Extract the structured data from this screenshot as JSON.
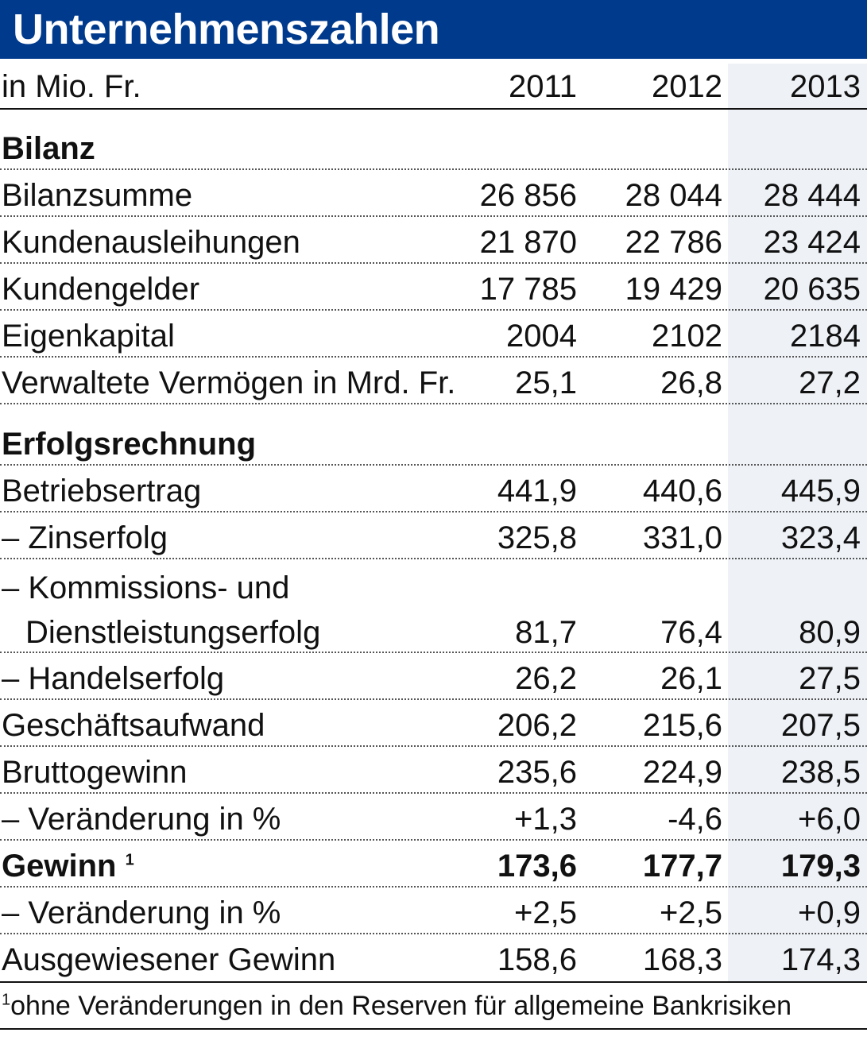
{
  "title": "Unternehmenszahlen",
  "header": {
    "unit": "in Mio. Fr.",
    "years": [
      "2011",
      "2012",
      "2013"
    ]
  },
  "sections": {
    "bilanz": "Bilanz",
    "erfolgsrechnung": "Erfolgsrechnung"
  },
  "rows": {
    "bilanzsumme": {
      "label": "Bilanzsumme",
      "v": [
        "26 856",
        "28 044",
        "28 444"
      ]
    },
    "kundenausleihungen": {
      "label": "Kundenausleihungen",
      "v": [
        "21 870",
        "22 786",
        "23 424"
      ]
    },
    "kundengelder": {
      "label": "Kundengelder",
      "v": [
        "17 785",
        "19 429",
        "20 635"
      ]
    },
    "eigenkapital": {
      "label": "Eigenkapital",
      "v": [
        "2004",
        "2102",
        "2184"
      ]
    },
    "vermoegen": {
      "label": "Verwaltete Vermögen in Mrd. Fr.",
      "v": [
        "25,1",
        "26,8",
        "27,2"
      ]
    },
    "betriebsertrag": {
      "label": "Betriebsertrag",
      "v": [
        "441,9",
        "440,6",
        "445,9"
      ]
    },
    "zinserfolg": {
      "label": "– Zinserfolg",
      "v": [
        "325,8",
        "331,0",
        "323,4"
      ]
    },
    "kommission": {
      "label1": "– Kommissions- und",
      "label2": "Dienstleistungserfolg",
      "v": [
        "81,7",
        "76,4",
        "80,9"
      ]
    },
    "handelserfolg": {
      "label": "– Handelserfolg",
      "v": [
        "26,2",
        "26,1",
        "27,5"
      ]
    },
    "geschaeftsaufwand": {
      "label": "Geschäftsaufwand",
      "v": [
        "206,2",
        "215,6",
        "207,5"
      ]
    },
    "bruttogewinn": {
      "label": "Bruttogewinn",
      "v": [
        "235,6",
        "224,9",
        "238,5"
      ]
    },
    "veraenderung1": {
      "label": "– Veränderung in %",
      "v": [
        "+1,3",
        "-4,6",
        "+6,0"
      ]
    },
    "gewinn": {
      "label": "Gewinn",
      "footnote_mark": "1",
      "v": [
        "173,6",
        "177,7",
        "179,3"
      ]
    },
    "veraenderung2": {
      "label": "– Veränderung in %",
      "v": [
        "+2,5",
        "+2,5",
        "+0,9"
      ]
    },
    "ausgewiesen": {
      "label": "Ausgewiesener Gewinn",
      "v": [
        "158,6",
        "168,3",
        "174,3"
      ]
    }
  },
  "footnote": {
    "mark": "1",
    "text": "ohne Veränderungen in den Reserven für allgemeine Bankrisiken"
  },
  "colors": {
    "title_bg": "#003a8c",
    "title_fg": "#ffffff",
    "highlight_col": "#eef2f7"
  }
}
